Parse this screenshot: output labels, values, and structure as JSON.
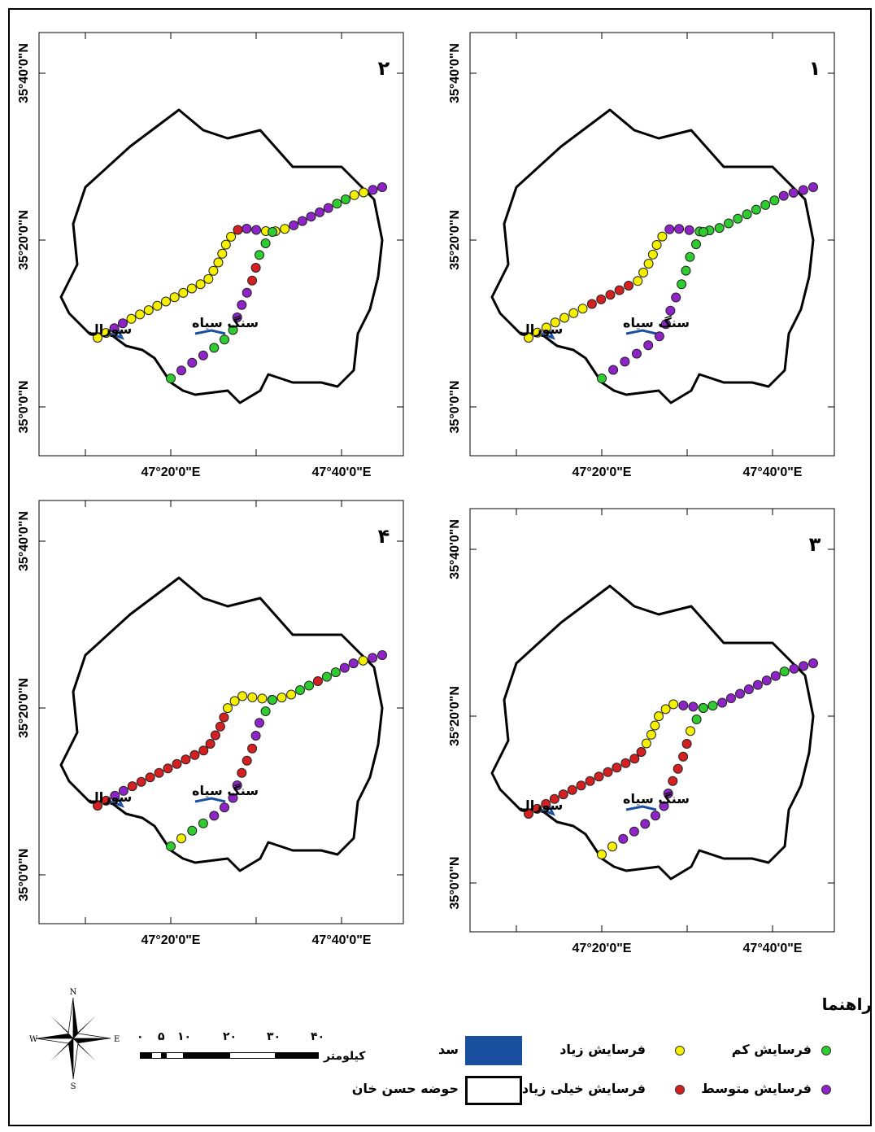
{
  "panels": [
    {
      "number": "١",
      "lat_labels": [
        "35°40'0\"N",
        "35°20'0\"N",
        "35°0'0\"N"
      ],
      "lon_labels": [
        "47°20'0\"E",
        "47°40'0\"E"
      ]
    },
    {
      "number": "٢",
      "lat_labels": [
        "35°40'0\"N",
        "35°20'0\"N",
        "35°0'0\"N"
      ],
      "lon_labels": [
        "47°20'0\"E",
        "47°40'0\"E"
      ]
    },
    {
      "number": "٣",
      "lat_labels": [
        "35°40'0\"N",
        "35°20'0\"N",
        "35°0'0\"N"
      ],
      "lon_labels": [
        "47°20'0\"E",
        "47°40'0\"E"
      ]
    },
    {
      "number": "۴",
      "lat_labels": [
        "35°40'0\"N",
        "35°20'0\"N",
        "35°0'0\"N"
      ],
      "lon_labels": [
        "47°20'0\"E",
        "47°40'0\"E"
      ]
    }
  ],
  "places": {
    "sang_siah": "سنگ سیاه",
    "sural": "سورال"
  },
  "legend": {
    "title": "راهنما",
    "low": "فرسایش کم",
    "high": "فرسایش زیاد",
    "dam": "سد",
    "medium": "فرسایش متوسط",
    "very_high": "فرسایش خیلی زیاد",
    "basin": "حوضه حسن خان"
  },
  "colors": {
    "low": "#2ecc2e",
    "medium": "#8e24c8",
    "high": "#f5f000",
    "very_high": "#d42020",
    "dam": "#1a4fa0"
  },
  "scale": {
    "labels": [
      "٠",
      "۵",
      "١٠",
      "٢٠",
      "٣٠",
      "۴٠"
    ],
    "unit": "کیلومتر"
  }
}
